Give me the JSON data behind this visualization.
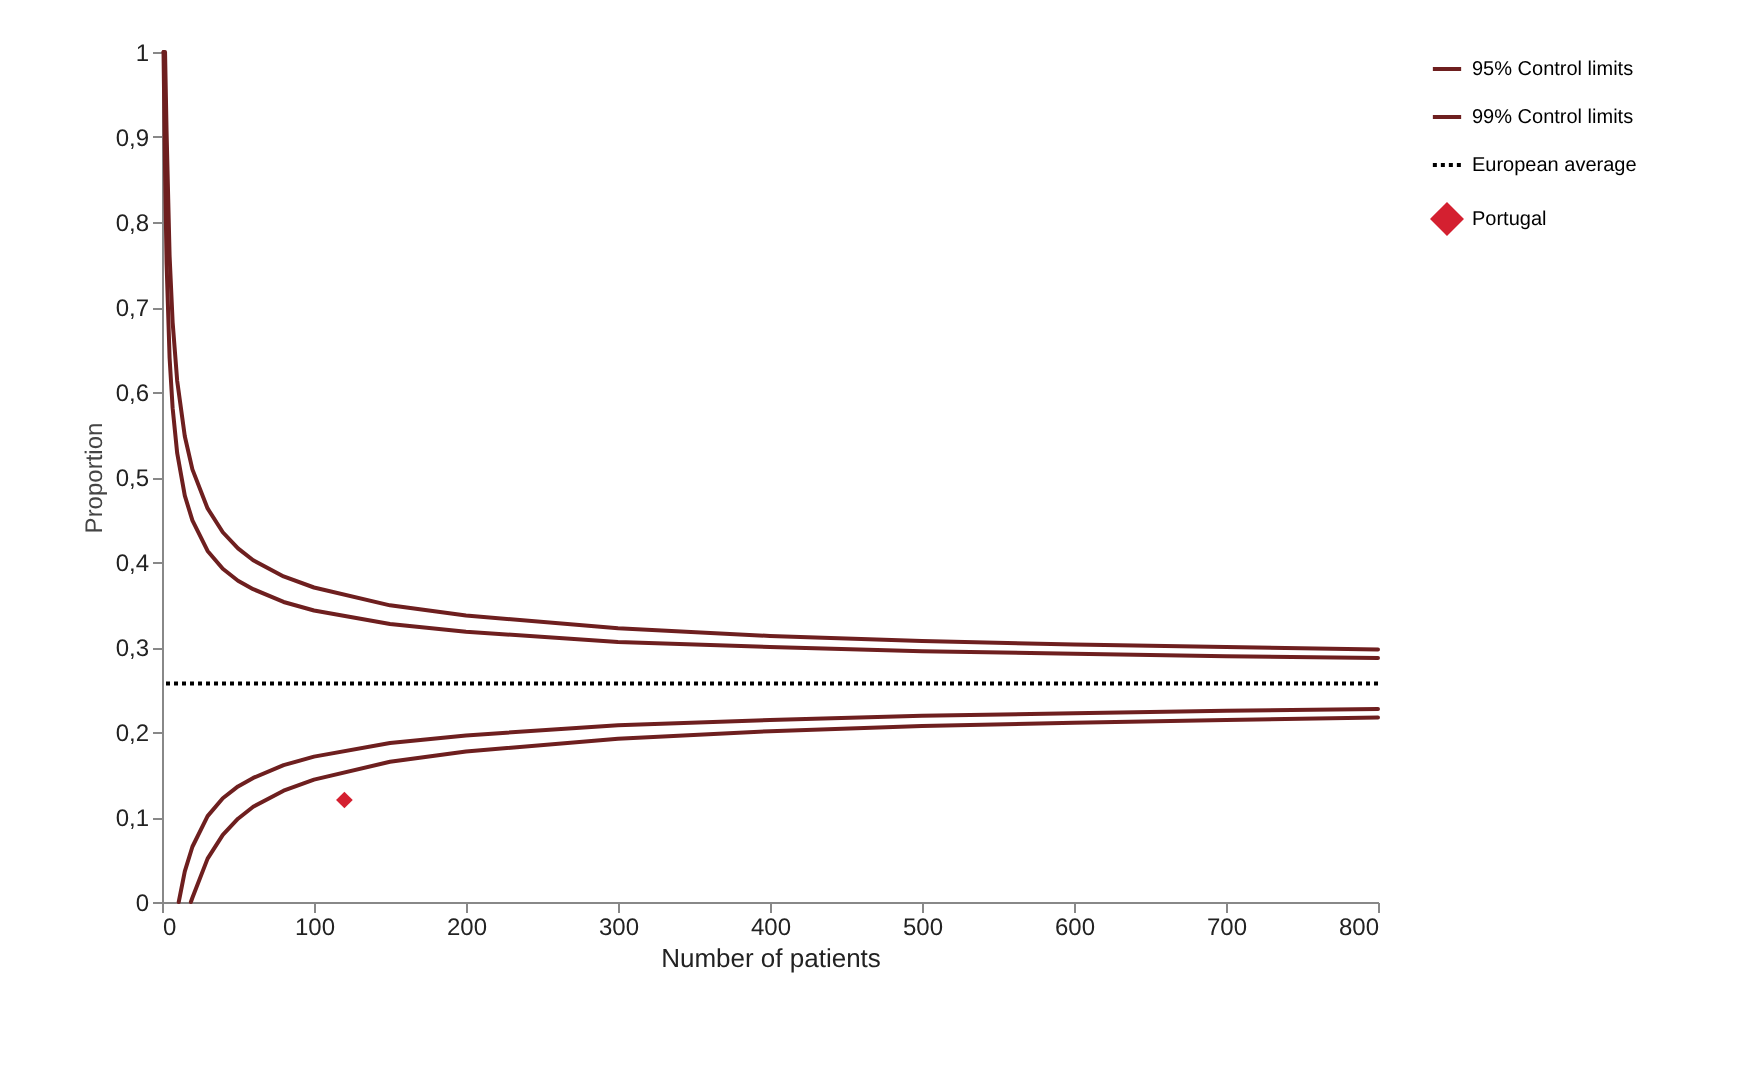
{
  "chart_data": {
    "type": "line",
    "xlabel": "Number of patients",
    "ylabel": "Proportion",
    "xlim": [
      0,
      800
    ],
    "xticks": [
      0,
      100,
      200,
      300,
      400,
      500,
      600,
      700,
      800
    ],
    "ylim": [
      0,
      1
    ],
    "yticks": [
      0,
      {
        "value": 0.1,
        "label": "0,1"
      },
      {
        "value": 0.2,
        "label": "0,2"
      },
      {
        "value": 0.3,
        "label": "0,3"
      },
      {
        "value": 0.4,
        "label": "0,4"
      },
      {
        "value": 0.5,
        "label": "0,5"
      },
      {
        "value": 0.6,
        "label": "0,6"
      },
      {
        "value": 0.7,
        "label": "0,7"
      },
      {
        "value": 0.8,
        "label": "0,8"
      },
      {
        "value": 0.9,
        "label": "0,9"
      },
      1
    ],
    "grid": false,
    "legend": "right",
    "line_style": "solid",
    "marker": "none",
    "series": [
      {
        "name": "95% Control limits",
        "color": "#6e1f1f",
        "x": [
          1,
          2,
          3,
          5,
          7,
          10,
          15,
          20,
          30,
          40,
          50,
          60,
          80,
          100,
          150,
          200,
          300,
          400,
          500,
          600,
          700,
          800
        ],
        "values": [
          1,
          0.863,
          0.752,
          0.64,
          0.581,
          0.528,
          0.478,
          0.449,
          0.413,
          0.392,
          0.378,
          0.368,
          0.353,
          0.343,
          0.327,
          0.318,
          0.306,
          0.3,
          0.295,
          0.292,
          0.289,
          0.287
        ]
      },
      {
        "name": "99% Control limits",
        "color": "#6e1f1f",
        "x": [
          1,
          2,
          3,
          5,
          7,
          10,
          15,
          20,
          30,
          40,
          50,
          60,
          80,
          100,
          150,
          200,
          300,
          400,
          500,
          600,
          700,
          800
        ],
        "values": [
          1,
          1,
          0.907,
          0.76,
          0.682,
          0.613,
          0.548,
          0.509,
          0.463,
          0.435,
          0.416,
          0.402,
          0.383,
          0.37,
          0.349,
          0.337,
          0.322,
          0.313,
          0.307,
          0.303,
          0.3,
          0.297
        ]
      },
      {
        "color": "#6e1f1f",
        "x": [
          11,
          15,
          20,
          30,
          40,
          50,
          60,
          80,
          100,
          150,
          200,
          300,
          400,
          500,
          600,
          700,
          800
        ],
        "values": [
          0,
          0.036,
          0.065,
          0.101,
          0.122,
          0.136,
          0.146,
          0.161,
          0.171,
          0.187,
          0.196,
          0.208,
          0.214,
          0.219,
          0.222,
          0.225,
          0.227
        ]
      },
      {
        "color": "#6e1f1f",
        "x": [
          19,
          20,
          30,
          40,
          50,
          60,
          80,
          100,
          150,
          200,
          300,
          400,
          500,
          600,
          700,
          800
        ],
        "values": [
          0,
          0.005,
          0.051,
          0.079,
          0.098,
          0.112,
          0.131,
          0.144,
          0.165,
          0.177,
          0.192,
          0.201,
          0.207,
          0.211,
          0.214,
          0.217
        ]
      },
      {
        "name": "Portugal",
        "type": "scatter",
        "marker": "diamond",
        "color": "#d42030",
        "x": [
          120
        ],
        "values": [
          0.12
        ]
      }
    ],
    "ref_lines": [
      {
        "axis": "y",
        "value": 0.257,
        "label": "European average",
        "color": "#000000",
        "line_style": "dotted"
      }
    ]
  }
}
